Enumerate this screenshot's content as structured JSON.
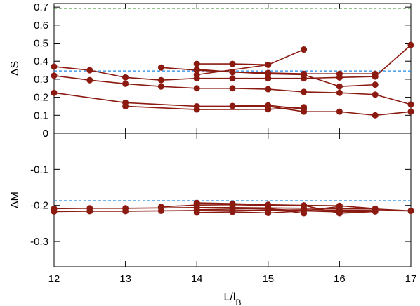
{
  "chart_data": [
    {
      "type": "line",
      "panel": "top",
      "ylabel": "ΔS",
      "xlim": [
        12,
        17
      ],
      "ylim": [
        0,
        0.72
      ],
      "yticks": [
        0,
        0.1,
        0.2,
        0.3,
        0.4,
        0.5,
        0.6,
        0.7
      ],
      "ytick_labels": [
        "0",
        "0.1",
        "0.2",
        "0.3",
        "0.4",
        "0.5",
        "0.6",
        "0.7"
      ],
      "grid": false,
      "reference_lines": [
        {
          "y": 0.693,
          "color": "#2e8b22",
          "style": "dashed"
        },
        {
          "y": 0.346,
          "color": "#1f8ae6",
          "style": "dashed"
        }
      ],
      "series_color": "#8b1a10",
      "series": [
        {
          "x": [
            12,
            12.5,
            13,
            13.5,
            14,
            14.5,
            15,
            15.5,
            16,
            16.5,
            17
          ],
          "y": [
            0.37,
            0.35,
            0.31,
            0.295,
            0.305,
            0.305,
            0.305,
            0.305,
            0.31,
            0.315,
            0.49
          ]
        },
        {
          "x": [
            12,
            12.5,
            13,
            13.5,
            14,
            14.5,
            15,
            15.5,
            16,
            16.5,
            17
          ],
          "y": [
            0.32,
            0.295,
            0.275,
            0.26,
            0.25,
            0.25,
            0.245,
            0.23,
            0.225,
            0.215,
            0.16
          ]
        },
        {
          "x": [
            12,
            13,
            14,
            15,
            15.5,
            16,
            16.5,
            17
          ],
          "y": [
            0.225,
            0.17,
            0.15,
            0.15,
            0.12,
            0.12,
            0.1,
            0.12
          ]
        },
        {
          "x": [
            13,
            14,
            15,
            15.5
          ],
          "y": [
            0.15,
            0.132,
            0.133,
            0.145
          ]
        },
        {
          "x": [
            13.5,
            14,
            14.5,
            15,
            15.5,
            16,
            16.5
          ],
          "y": [
            0.365,
            0.35,
            0.34,
            0.335,
            0.33,
            0.33,
            0.33
          ]
        },
        {
          "x": [
            14,
            14.5,
            15
          ],
          "y": [
            0.385,
            0.385,
            0.38
          ]
        },
        {
          "x": [
            14,
            15,
            15.5
          ],
          "y": [
            0.325,
            0.38,
            0.465
          ]
        },
        {
          "x": [
            14,
            14.5,
            15,
            15.5,
            16,
            16.5
          ],
          "y": [
            0.355,
            0.34,
            0.33,
            0.325,
            0.26,
            0.27
          ]
        },
        {
          "x": [
            14.5,
            15,
            15.5
          ],
          "y": [
            0.152,
            0.155,
            0.135
          ]
        }
      ]
    },
    {
      "type": "line",
      "panel": "bottom",
      "xlabel": "L/l",
      "xlabel_sub": "B",
      "ylabel": "ΔM",
      "xlim": [
        12,
        17
      ],
      "ylim": [
        -0.37,
        0
      ],
      "xticks": [
        12,
        13,
        14,
        15,
        16,
        17
      ],
      "xtick_labels": [
        "12",
        "13",
        "14",
        "15",
        "16",
        "17"
      ],
      "yticks": [
        0,
        -0.1,
        -0.2,
        -0.3
      ],
      "ytick_labels": [
        "0",
        "-0.1",
        "-0.2",
        "-0.3"
      ],
      "grid": false,
      "reference_lines": [
        {
          "y": -0.187,
          "color": "#1f8ae6",
          "style": "dashed"
        }
      ],
      "series_color": "#8b1a10",
      "series": [
        {
          "x": [
            12,
            12.5,
            13,
            13.5,
            14,
            14.5,
            15,
            15.5,
            16,
            16.5,
            17
          ],
          "y": [
            -0.209,
            -0.208,
            -0.208,
            -0.207,
            -0.206,
            -0.206,
            -0.207,
            -0.208,
            -0.209,
            -0.21,
            -0.215
          ]
        },
        {
          "x": [
            12,
            12.5,
            13,
            13.5,
            14,
            14.5,
            15,
            15.5,
            16,
            16.5,
            17
          ],
          "y": [
            -0.217,
            -0.216,
            -0.216,
            -0.215,
            -0.214,
            -0.214,
            -0.213,
            -0.212,
            -0.213,
            -0.214,
            -0.215
          ]
        },
        {
          "x": [
            13.5,
            14,
            14.5,
            15,
            15.5,
            16,
            16.5
          ],
          "y": [
            -0.204,
            -0.199,
            -0.198,
            -0.2,
            -0.2,
            -0.201,
            -0.209
          ]
        },
        {
          "x": [
            14,
            14.5,
            15,
            15.5,
            16,
            16.5
          ],
          "y": [
            -0.193,
            -0.195,
            -0.198,
            -0.2,
            -0.222,
            -0.217
          ]
        },
        {
          "x": [
            14,
            14.5,
            15,
            15.5,
            16
          ],
          "y": [
            -0.22,
            -0.218,
            -0.221,
            -0.215,
            -0.203
          ]
        },
        {
          "x": [
            14,
            15,
            15.5
          ],
          "y": [
            -0.212,
            -0.208,
            -0.222
          ]
        },
        {
          "x": [
            14.5,
            15,
            15.5,
            16,
            16.5
          ],
          "y": [
            -0.208,
            -0.21,
            -0.215,
            -0.218,
            -0.216
          ]
        }
      ]
    }
  ]
}
